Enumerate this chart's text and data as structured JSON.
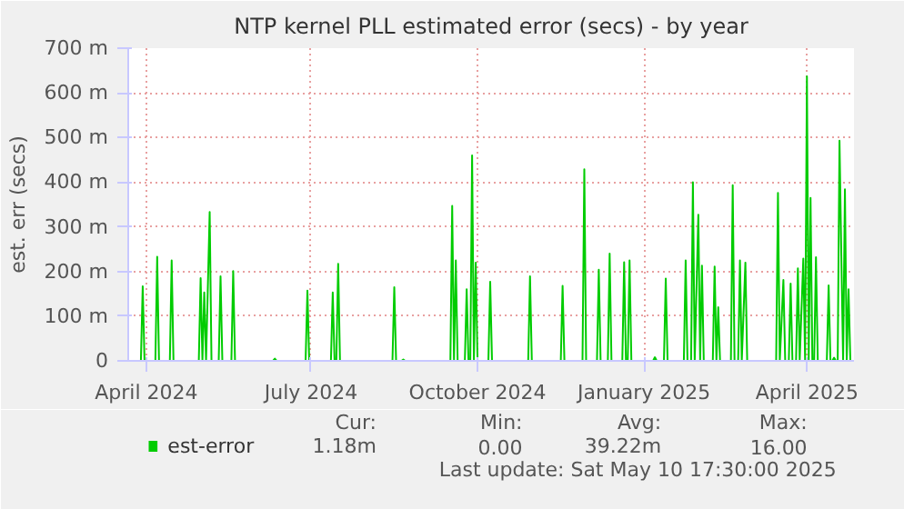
{
  "chart_data": {
    "type": "line",
    "title": "NTP kernel PLL estimated error (secs) - by year",
    "ylabel": "est. err (secs)",
    "xlim": [
      "2024-03-22",
      "2025-04-27"
    ],
    "ylim": [
      0,
      700
    ],
    "xticks": [
      {
        "value": "2024-04-01",
        "label": "April 2024"
      },
      {
        "value": "2024-07-01",
        "label": "July 2024"
      },
      {
        "value": "2024-10-01",
        "label": "October 2024"
      },
      {
        "value": "2025-01-01",
        "label": "January 2025"
      },
      {
        "value": "2025-04-01",
        "label": "April 2025"
      }
    ],
    "yticks": [
      0,
      {
        "value": 100,
        "label": "100 m"
      },
      {
        "value": 200,
        "label": "200 m"
      },
      {
        "value": 300,
        "label": "300 m"
      },
      {
        "value": 400,
        "label": "400 m"
      },
      {
        "value": 500,
        "label": "500 m"
      },
      {
        "value": 600,
        "label": "600 m"
      },
      {
        "value": 700,
        "label": "700 m"
      }
    ],
    "grid": true,
    "legend": "bottom",
    "annotations": [
      "Cur:",
      "Min:",
      "Avg:",
      "Max:",
      "1.18m",
      "0.00",
      "39.22m",
      "16.00",
      "Last update: Sat May 10 17:30:00 2025"
    ],
    "series": [
      {
        "name": "est-error",
        "color": "#00cc00",
        "x": [
          "2024-03-22",
          "2024-03-29",
          "2024-03-30",
          "2024-03-31",
          "2024-04-06",
          "2024-04-07",
          "2024-04-08",
          "2024-04-14",
          "2024-04-15",
          "2024-04-16",
          "2024-04-30",
          "2024-05-01",
          "2024-05-02",
          "2024-05-03",
          "2024-05-04",
          "2024-05-06",
          "2024-05-07",
          "2024-05-11",
          "2024-05-12",
          "2024-05-13",
          "2024-05-18",
          "2024-05-19",
          "2024-05-20",
          "2024-06-10",
          "2024-06-11",
          "2024-06-12",
          "2024-06-28",
          "2024-06-29",
          "2024-06-30",
          "2024-07-12",
          "2024-07-13",
          "2024-07-14",
          "2024-07-15",
          "2024-07-16",
          "2024-07-17",
          "2024-08-15",
          "2024-08-16",
          "2024-08-17",
          "2024-08-20",
          "2024-08-21",
          "2024-08-22",
          "2024-09-16",
          "2024-09-17",
          "2024-09-18",
          "2024-09-19",
          "2024-09-20",
          "2024-09-24",
          "2024-09-25",
          "2024-09-26",
          "2024-09-27",
          "2024-09-28",
          "2024-09-29",
          "2024-09-30",
          "2024-10-01",
          "2024-10-07",
          "2024-10-08",
          "2024-10-09",
          "2024-10-29",
          "2024-10-30",
          "2024-10-31",
          "2024-11-16",
          "2024-11-17",
          "2024-11-18",
          "2024-11-28",
          "2024-11-29",
          "2024-11-30",
          "2024-12-06",
          "2024-12-07",
          "2024-12-08",
          "2024-12-12",
          "2024-12-13",
          "2024-12-14",
          "2024-12-20",
          "2024-12-21",
          "2024-12-22",
          "2024-12-23",
          "2024-12-24",
          "2024-12-25",
          "2025-01-06",
          "2025-01-07",
          "2025-01-08",
          "2025-01-12",
          "2025-01-13",
          "2025-01-14",
          "2025-01-23",
          "2025-01-24",
          "2025-01-25",
          "2025-01-27",
          "2025-01-28",
          "2025-01-29",
          "2025-01-31",
          "2025-02-01",
          "2025-02-02",
          "2025-02-03",
          "2025-02-08",
          "2025-02-09",
          "2025-02-10",
          "2025-02-11",
          "2025-02-12",
          "2025-02-18",
          "2025-02-19",
          "2025-02-20",
          "2025-02-22",
          "2025-02-23",
          "2025-02-24",
          "2025-02-26",
          "2025-02-27",
          "2025-03-15",
          "2025-03-16",
          "2025-03-17",
          "2025-03-19",
          "2025-03-20",
          "2025-03-22",
          "2025-03-23",
          "2025-03-24",
          "2025-03-26",
          "2025-03-27",
          "2025-03-28",
          "2025-03-30",
          "2025-03-31",
          "2025-04-01",
          "2025-04-02",
          "2025-04-03",
          "2025-04-04",
          "2025-04-05",
          "2025-04-06",
          "2025-04-07",
          "2025-04-12",
          "2025-04-13",
          "2025-04-14",
          "2025-04-15",
          "2025-04-16",
          "2025-04-17",
          "2025-04-18",
          "2025-04-19",
          "2025-04-20",
          "2025-04-21",
          "2025-04-22",
          "2025-04-23",
          "2025-04-24",
          "2025-04-25"
        ],
        "values": [
          0,
          0,
          167,
          0,
          0,
          233,
          0,
          0,
          225,
          0,
          0,
          185,
          0,
          153,
          0,
          333,
          0,
          0,
          189,
          0,
          0,
          201,
          0,
          0,
          5,
          0,
          0,
          157,
          0,
          0,
          153,
          0,
          0,
          217,
          0,
          0,
          165,
          0,
          0,
          3,
          0,
          0,
          347,
          0,
          225,
          0,
          0,
          160,
          0,
          0,
          460,
          0,
          220,
          0,
          0,
          177,
          0,
          0,
          189,
          0,
          0,
          168,
          0,
          0,
          429,
          0,
          0,
          204,
          0,
          0,
          240,
          0,
          0,
          221,
          0,
          0,
          225,
          0,
          0,
          8,
          0,
          0,
          184,
          0,
          0,
          225,
          0,
          0,
          400,
          0,
          327,
          0,
          213,
          0,
          0,
          211,
          0,
          120,
          0,
          0,
          393,
          0,
          0,
          225,
          0,
          220,
          0,
          0,
          376,
          0,
          181,
          0,
          0,
          173,
          0,
          0,
          207,
          0,
          229,
          0,
          637,
          0,
          365,
          0,
          0,
          232,
          0,
          0,
          169,
          0,
          0,
          7,
          0,
          0,
          493,
          236,
          0,
          384,
          0,
          160,
          0
        ]
      }
    ]
  }
}
